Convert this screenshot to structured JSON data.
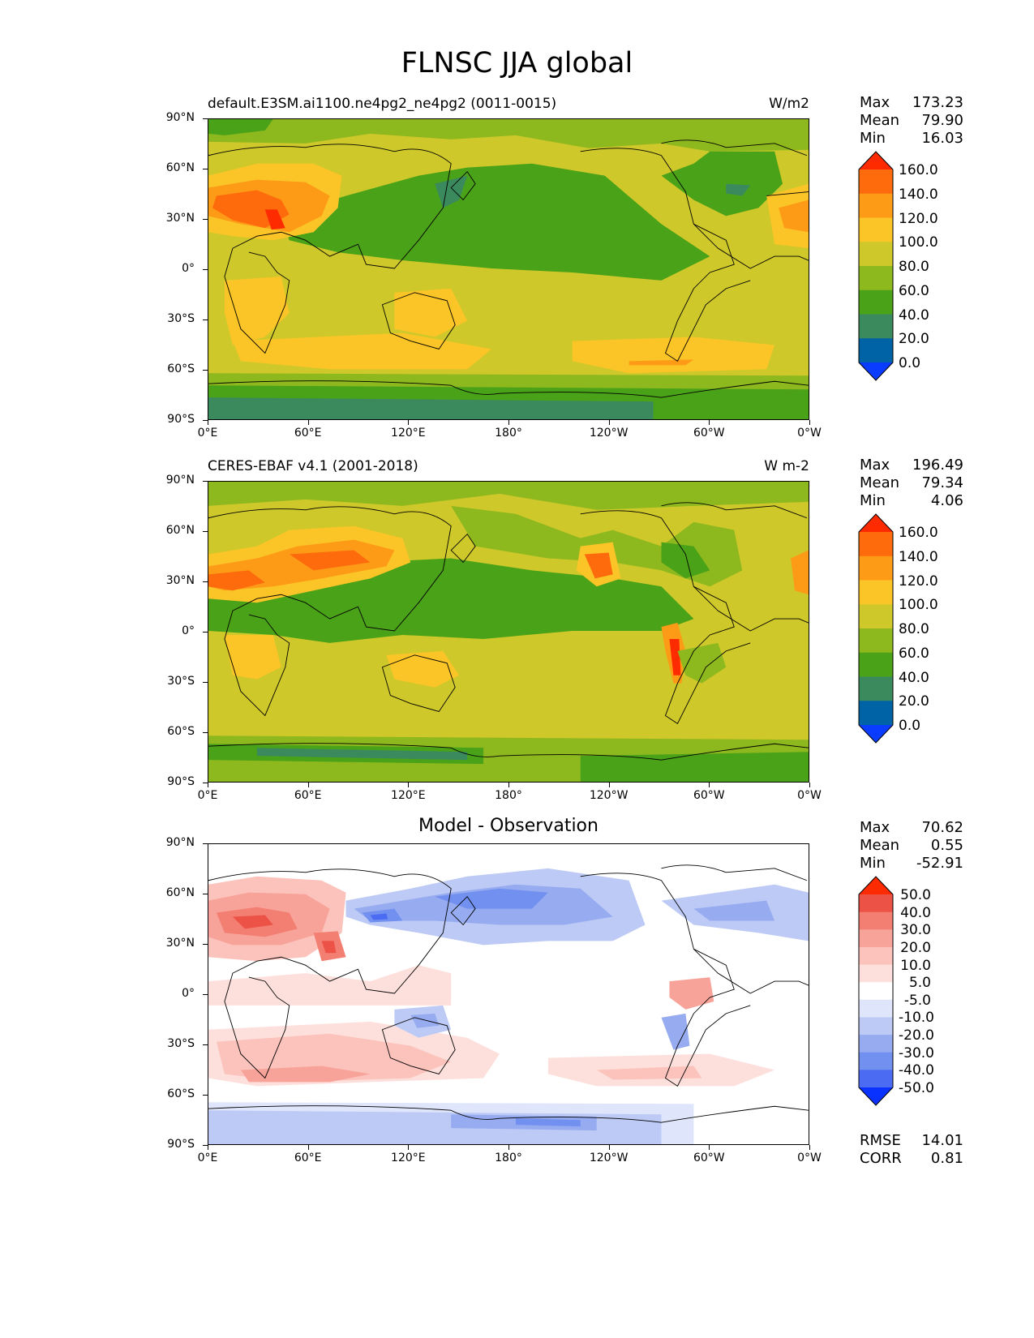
{
  "title": "FLNSC JJA global",
  "axes": {
    "lat_labels": [
      "90°N",
      "60°N",
      "30°N",
      "0°",
      "30°S",
      "60°S",
      "90°S"
    ],
    "lon_labels": [
      "0°E",
      "60°E",
      "120°E",
      "180°",
      "120°W",
      "60°W",
      "0°W"
    ]
  },
  "panels": [
    {
      "title_left": "default.E3SM.ai1100.ne4pg2_ne4pg2 (0011-0015)",
      "units": "W/m2",
      "stats": {
        "max_label": "Max",
        "max": "173.23",
        "mean_label": "Mean",
        "mean": "79.90",
        "min_label": "Min",
        "min": "16.03"
      },
      "colorbar_labels": [
        "160.0",
        "140.0",
        "120.0",
        "100.0",
        "80.0",
        "60.0",
        "40.0",
        "20.0",
        "0.0"
      ]
    },
    {
      "title_left": "CERES-EBAF v4.1 (2001-2018)",
      "units": "W m-2",
      "stats": {
        "max_label": "Max",
        "max": "196.49",
        "mean_label": "Mean",
        "mean": "79.34",
        "min_label": "Min",
        "min": "4.06"
      },
      "colorbar_labels": [
        "160.0",
        "140.0",
        "120.0",
        "100.0",
        "80.0",
        "60.0",
        "40.0",
        "20.0",
        "0.0"
      ]
    },
    {
      "title_center": "Model - Observation",
      "stats": {
        "max_label": "Max",
        "max": "70.62",
        "mean_label": "Mean",
        "mean": "0.55",
        "min_label": "Min",
        "min": "-52.91"
      },
      "colorbar_labels": [
        "50.0",
        "40.0",
        "30.0",
        "20.0",
        "10.0",
        "5.0",
        "-5.0",
        "-10.0",
        "-20.0",
        "-30.0",
        "-40.0",
        "-50.0"
      ],
      "metrics": {
        "rmse_label": "RMSE",
        "rmse": "14.01",
        "corr_label": "CORR",
        "corr": "0.81"
      }
    }
  ],
  "colors": {
    "abs_levels": [
      "#0a3cff",
      "#0063a5",
      "#3a8a5e",
      "#4aa218",
      "#8db81e",
      "#cfc82a",
      "#fbc427",
      "#fd9b17",
      "#fd6b0c",
      "#fe2a00"
    ],
    "diff_levels": [
      "#0a32ff",
      "#4b6cf2",
      "#7290ef",
      "#97acf0",
      "#bdcaf5",
      "#dfe6fb",
      "#ffffff",
      "#fde0dc",
      "#fbc3bb",
      "#f8a39a",
      "#f37f73",
      "#ec5246",
      "#fe2a00"
    ]
  }
}
